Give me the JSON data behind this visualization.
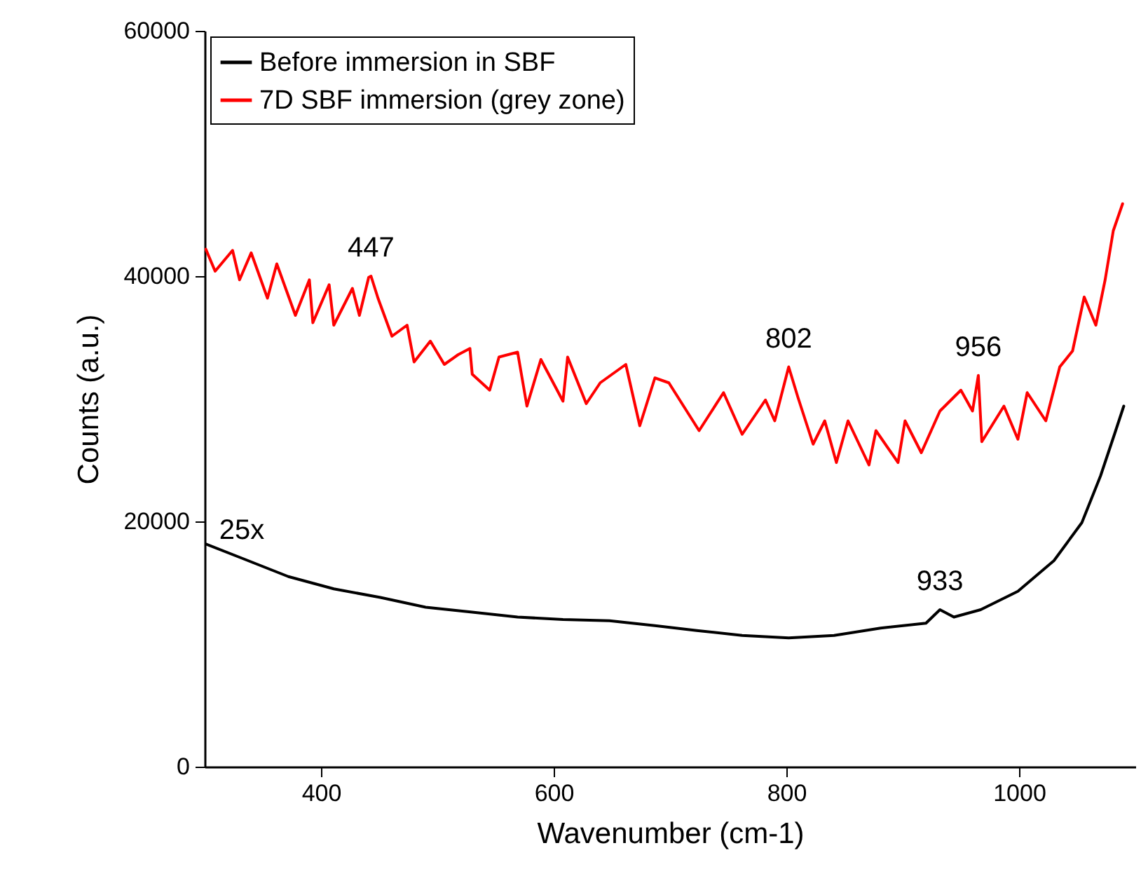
{
  "chart_data": {
    "type": "line",
    "xlabel": "Wavenumber (cm-1)",
    "ylabel": "Counts (a.u.)",
    "xlim": [
      300,
      1100
    ],
    "xticks": [
      400,
      600,
      800,
      1000
    ],
    "ylim": [
      0,
      60000
    ],
    "yticks": [
      0,
      20000,
      40000,
      60000
    ],
    "legend": "top left",
    "grid": false,
    "series": [
      {
        "name": "Before immersion in SBF",
        "color": "#000000",
        "x": [
          300,
          332,
          372,
          411,
          451,
          490,
          530,
          569,
          608,
          648,
          687,
          723,
          762,
          802,
          841,
          881,
          920,
          932,
          944,
          967,
          999,
          1030,
          1054,
          1070,
          1082,
          1090
        ],
        "values": [
          18200,
          17000,
          15500,
          14500,
          13800,
          13000,
          12600,
          12200,
          12000,
          11900,
          11500,
          11100,
          10700,
          10500,
          10700,
          11300,
          11700,
          12800,
          12200,
          12800,
          14300,
          16800,
          19900,
          23700,
          27100,
          29400
        ]
      },
      {
        "name": "7D SBF immersion (grey zone)",
        "color": "#ff0000",
        "x": [
          301,
          309,
          324,
          330,
          340,
          354,
          362,
          378,
          390,
          393,
          407,
          411,
          427,
          433,
          441,
          443,
          449,
          461,
          474,
          480,
          494,
          506,
          518,
          528,
          530,
          545,
          553,
          569,
          577,
          589,
          608,
          612,
          628,
          640,
          662,
          674,
          687,
          699,
          725,
          746,
          762,
          782,
          790,
          802,
          810,
          823,
          833,
          843,
          853,
          871,
          877,
          896,
          902,
          916,
          932,
          950,
          960,
          965,
          968,
          987,
          999,
          1007,
          1023,
          1035,
          1046,
          1056,
          1066,
          1074,
          1081,
          1089
        ],
        "values": [
          42200,
          40400,
          42100,
          39700,
          41900,
          38200,
          41000,
          36800,
          39700,
          36200,
          39300,
          36000,
          39000,
          36800,
          39900,
          40000,
          38200,
          35100,
          36000,
          33000,
          34700,
          32800,
          33600,
          34100,
          32000,
          30700,
          33400,
          33800,
          29400,
          33200,
          29800,
          33400,
          29600,
          31300,
          32800,
          27800,
          31700,
          31300,
          27400,
          30500,
          27100,
          29900,
          28200,
          32600,
          30100,
          26300,
          28200,
          24800,
          28200,
          24600,
          27400,
          24800,
          28200,
          25600,
          29000,
          30700,
          29000,
          31900,
          26500,
          29400,
          26700,
          30500,
          28200,
          32600,
          33900,
          38300,
          36000,
          39700,
          43700,
          45900
        ]
      }
    ],
    "annotations": [
      {
        "text": "447",
        "x": 443,
        "y": 40000
      },
      {
        "text": "802",
        "x": 802,
        "y": 32600
      },
      {
        "text": "956",
        "x": 965,
        "y": 31900
      },
      {
        "text": "933",
        "x": 932,
        "y": 12800
      },
      {
        "text": "25x",
        "x": 332,
        "y": 17000
      }
    ]
  }
}
